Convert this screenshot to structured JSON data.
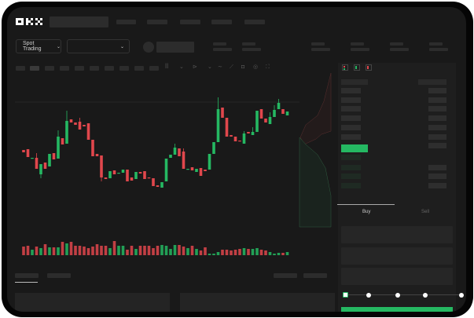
{
  "header": {
    "logo": "OKX",
    "mode_selector": "Spot Trading"
  },
  "order_panel": {
    "tabs": [
      "Buy",
      "Sell"
    ],
    "active_tab": "Buy",
    "leverage_slider_value": 0
  },
  "colors": {
    "up": "#25b862",
    "down": "#e0474c",
    "background": "#191919",
    "accent": "#25b862"
  },
  "toolbar_icons": [
    "indicator-icon",
    "chevron-down-icon",
    "draw-icon",
    "chevron-down-icon",
    "line-icon",
    "ruler-icon",
    "camera-icon",
    "settings-icon",
    "fullscreen-icon"
  ],
  "orderbook_icons": [
    "orderbook-both-icon",
    "orderbook-bids-icon",
    "orderbook-asks-icon"
  ],
  "chart_data": {
    "type": "candlestick",
    "candles": [
      [
        118,
        115
      ],
      [
        119,
        109
      ],
      [
        107,
        108
      ],
      [
        108,
        94,
        114
      ],
      [
        87,
        100,
        null,
        82
      ],
      [
        102,
        94
      ],
      [
        97,
        113
      ],
      [
        114,
        106
      ],
      [
        107,
        135,
        143
      ],
      [
        133,
        125
      ],
      [
        126,
        155,
        168
      ],
      [
        157,
        153
      ],
      [
        153,
        150
      ],
      [
        154,
        144,
        159
      ],
      [
        150,
        148
      ],
      [
        152,
        131
      ],
      [
        131,
        110
      ],
      [
        113,
        110
      ],
      [
        111,
        83,
        null,
        78
      ],
      [
        83,
        81
      ],
      [
        82,
        91
      ],
      [
        92,
        87
      ],
      [
        88,
        89
      ],
      [
        89,
        93
      ],
      [
        93,
        78
      ],
      [
        83,
        79
      ],
      [
        81,
        90
      ],
      [
        90,
        88
      ],
      [
        91,
        81
      ],
      [
        83,
        82
      ],
      [
        82,
        72
      ],
      [
        73,
        71
      ],
      [
        70,
        77
      ],
      [
        78,
        107
      ],
      [
        108,
        112
      ],
      [
        112,
        121,
        126
      ],
      [
        120,
        110
      ],
      [
        116,
        94,
        120
      ],
      [
        93,
        94
      ],
      [
        96,
        92
      ],
      [
        90,
        94
      ],
      [
        95,
        85
      ],
      [
        93,
        91
      ],
      [
        93,
        113
      ],
      [
        113,
        128
      ],
      [
        128,
        170,
        185
      ],
      [
        172,
        159
      ],
      [
        159,
        135
      ],
      [
        137,
        135
      ],
      [
        135,
        129
      ],
      [
        130,
        129
      ],
      [
        126,
        139,
        142
      ],
      [
        141,
        139
      ],
      [
        137,
        141,
        147
      ],
      [
        141,
        168
      ],
      [
        170,
        158
      ],
      [
        158,
        153
      ],
      [
        151,
        160,
        166
      ],
      [
        160,
        169,
        175
      ],
      [
        170,
        178,
        183
      ],
      [
        170,
        164
      ],
      [
        162,
        167
      ]
    ],
    "volume": [
      11,
      12,
      7,
      11,
      9,
      14,
      10,
      10,
      10,
      17,
      15,
      17,
      12,
      12,
      11,
      9,
      11,
      14,
      12,
      12,
      9,
      18,
      12,
      12,
      7,
      12,
      8,
      12,
      12,
      12,
      9,
      12,
      13,
      12,
      8,
      13,
      13,
      11,
      9,
      12,
      8,
      6,
      10,
      2,
      2,
      4,
      7,
      7,
      6,
      7,
      8,
      9,
      8,
      8,
      9,
      7,
      6,
      4,
      2,
      3,
      3,
      4
    ]
  }
}
